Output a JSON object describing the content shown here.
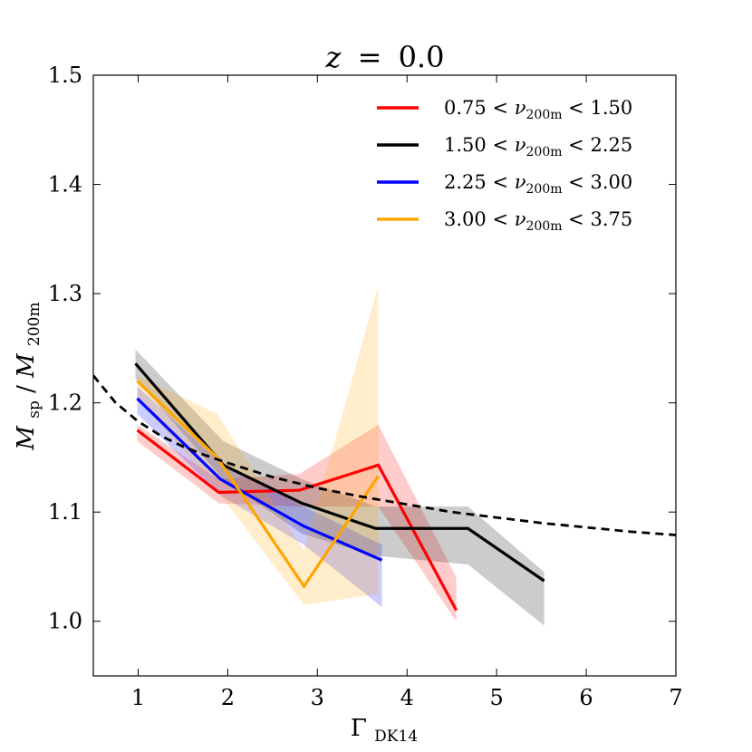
{
  "chart_data": {
    "type": "line",
    "title": "z = 0.0",
    "xlabel": "Γ_DK14",
    "ylabel": "M_sp / M_200m",
    "xlim": [
      0.5,
      7
    ],
    "ylim": [
      0.95,
      1.5
    ],
    "xticks": [
      1,
      2,
      3,
      4,
      5,
      6,
      7
    ],
    "yticks": [
      1.0,
      1.1,
      1.2,
      1.3,
      1.4,
      1.5
    ],
    "legend_position": "top-right",
    "series": [
      {
        "name": "0.75 < ν_200m < 1.50",
        "color": "#ff0000",
        "x": [
          0.99,
          1.9,
          2.8,
          3.68,
          4.55
        ],
        "y": [
          1.175,
          1.118,
          1.12,
          1.143,
          1.01
        ],
        "band_upper": [
          1.18,
          1.13,
          1.135,
          1.18,
          1.04
        ],
        "band_lower": [
          1.165,
          1.108,
          1.105,
          1.105,
          1.0
        ]
      },
      {
        "name": "1.50 < ν_200m < 2.25",
        "color": "#000000",
        "x": [
          0.97,
          1.95,
          2.83,
          3.65,
          4.68,
          5.53
        ],
        "y": [
          1.236,
          1.143,
          1.108,
          1.085,
          1.085,
          1.037
        ],
        "band_upper": [
          1.249,
          1.165,
          1.13,
          1.105,
          1.105,
          1.045
        ],
        "band_lower": [
          1.222,
          1.13,
          1.08,
          1.06,
          1.052,
          0.996
        ]
      },
      {
        "name": "2.25 < ν_200m < 3.00",
        "color": "#0000ff",
        "x": [
          0.99,
          1.92,
          2.85,
          3.72
        ],
        "y": [
          1.204,
          1.13,
          1.087,
          1.056
        ],
        "band_upper": [
          1.215,
          1.145,
          1.105,
          1.07
        ],
        "band_lower": [
          1.19,
          1.115,
          1.07,
          1.013
        ]
      },
      {
        "name": "3.00 < ν_200m < 3.75",
        "color": "#ffa500",
        "x": [
          0.99,
          1.88,
          2.85,
          3.68
        ],
        "y": [
          1.22,
          1.15,
          1.032,
          1.133
        ],
        "band_upper": [
          1.225,
          1.19,
          1.065,
          1.307
        ],
        "band_lower": [
          1.205,
          1.12,
          1.015,
          1.025
        ]
      },
      {
        "name": "model",
        "color": "#000000",
        "style": "dashed",
        "x": [
          0.5,
          0.75,
          1.0,
          1.25,
          1.5,
          1.75,
          2.0,
          2.5,
          3.0,
          3.5,
          4.0,
          4.5,
          5.0,
          5.5,
          6.0,
          6.5,
          7.0
        ],
        "y": [
          1.225,
          1.2,
          1.183,
          1.17,
          1.16,
          1.152,
          1.145,
          1.132,
          1.122,
          1.114,
          1.107,
          1.1,
          1.095,
          1.09,
          1.086,
          1.082,
          1.079
        ]
      }
    ]
  },
  "legend": {
    "entries": [
      {
        "lower": "0.75",
        "upper": "1.50"
      },
      {
        "lower": "1.50",
        "upper": "2.25"
      },
      {
        "lower": "2.25",
        "upper": "3.00"
      },
      {
        "lower": "3.00",
        "upper": "3.75"
      }
    ],
    "symbol": "ν",
    "sub": "200m",
    "lt": "<"
  },
  "title": {
    "var": "z",
    "eq": "=",
    "value": "0.0"
  },
  "xaxis": {
    "symbol": "Γ",
    "sub": "DK14"
  },
  "yaxis": {
    "num": "M",
    "num_sub": "sp",
    "slash": "/",
    "den": "M",
    "den_sub": "200m"
  }
}
